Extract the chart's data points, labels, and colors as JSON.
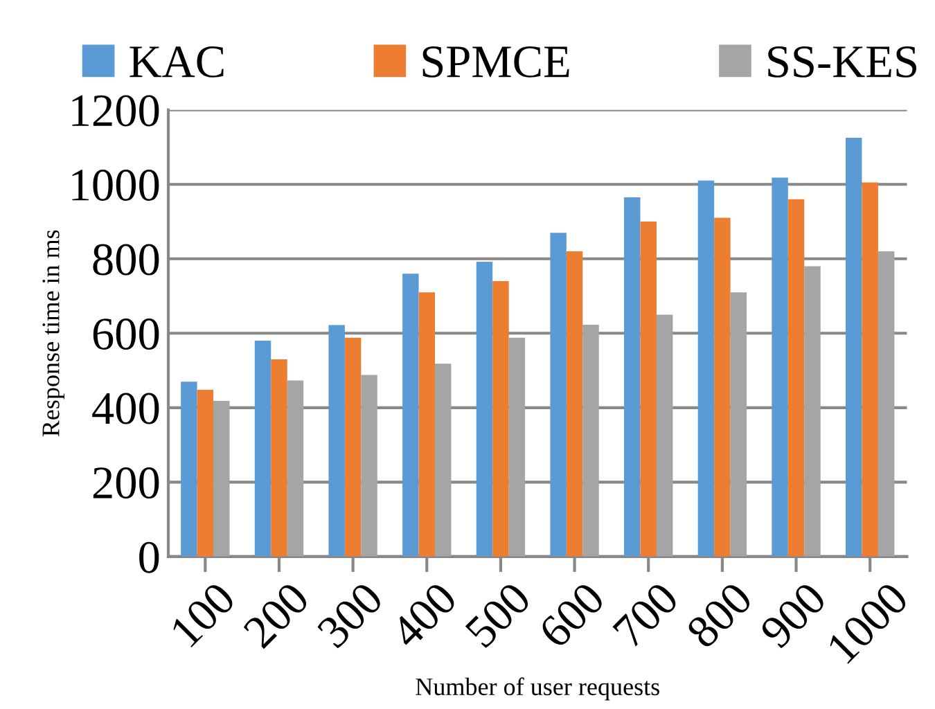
{
  "chart_data": {
    "type": "bar",
    "xlabel": "Number of user requests",
    "ylabel": "Response time in ms",
    "categories": [
      "100",
      "200",
      "300",
      "400",
      "500",
      "600",
      "700",
      "800",
      "900",
      "1000"
    ],
    "series": [
      {
        "name": "KAC",
        "color": "#5b9bd5",
        "values": [
          470,
          580,
          622,
          760,
          792,
          870,
          965,
          1010,
          1018,
          1125
        ]
      },
      {
        "name": "SPMCE",
        "color": "#ed7d31",
        "values": [
          448,
          530,
          588,
          710,
          740,
          820,
          900,
          910,
          960,
          1005
        ]
      },
      {
        "name": "SS-KES",
        "color": "#a5a5a5",
        "values": [
          418,
          473,
          488,
          518,
          588,
          623,
          650,
          710,
          780,
          820
        ]
      }
    ],
    "ylim": [
      0,
      1200
    ],
    "yticks": [
      0,
      200,
      400,
      600,
      800,
      1000,
      1200
    ],
    "grid": "y",
    "legend": "top"
  }
}
